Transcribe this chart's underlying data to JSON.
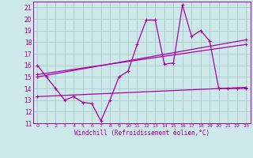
{
  "xlabel": "Windchill (Refroidissement éolien,°C)",
  "background_color": "#cce8e8",
  "grid_color": "#aacccc",
  "line_color": "#aa00aa",
  "xlim": [
    -0.5,
    23.5
  ],
  "ylim": [
    11,
    21.5
  ],
  "yticks": [
    11,
    12,
    13,
    14,
    15,
    16,
    17,
    18,
    19,
    20,
    21
  ],
  "xticks": [
    0,
    1,
    2,
    3,
    4,
    5,
    6,
    7,
    8,
    9,
    10,
    11,
    12,
    13,
    14,
    15,
    16,
    17,
    18,
    19,
    20,
    21,
    22,
    23
  ],
  "series1_x": [
    0,
    1,
    2,
    3,
    4,
    5,
    6,
    7,
    8,
    9,
    10,
    11,
    12,
    13,
    14,
    15,
    16,
    17,
    18,
    19,
    20,
    21,
    22,
    23
  ],
  "series1_y": [
    16.0,
    15.0,
    14.0,
    13.0,
    13.3,
    12.8,
    12.7,
    11.2,
    13.0,
    15.0,
    15.5,
    17.8,
    19.9,
    19.9,
    16.1,
    16.2,
    21.2,
    18.5,
    19.0,
    18.1,
    14.0,
    14.0,
    14.0,
    14.0
  ],
  "series2_x": [
    0,
    23
  ],
  "series2_y": [
    15.2,
    17.8
  ],
  "series3_x": [
    0,
    23
  ],
  "series3_y": [
    15.0,
    18.2
  ],
  "series4_x": [
    0,
    23
  ],
  "series4_y": [
    13.3,
    14.1
  ]
}
